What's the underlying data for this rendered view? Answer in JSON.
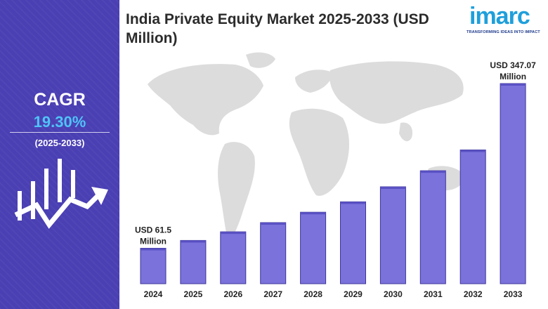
{
  "sidebar": {
    "cagr_label": "CAGR",
    "cagr_value": "19.30%",
    "period": "(2025-2033)",
    "icon": "growth-chart-icon"
  },
  "logo": {
    "text": "imarc",
    "tagline": "TRANSFORMING IDEAS INTO IMPACT"
  },
  "colors": {
    "sidebar_bg": "#4a3fb3",
    "cagr_value": "#4fc3f7",
    "bar_fill": "#7b72dc",
    "bar_edge": "#3e3599",
    "logo": "#1f9fdb",
    "map": "#dcdcdc"
  },
  "chart_data": {
    "type": "bar",
    "title": "India Private Equity Market 2025-2033 (USD Million)",
    "categories": [
      "2024",
      "2025",
      "2026",
      "2027",
      "2028",
      "2029",
      "2030",
      "2031",
      "2032",
      "2033"
    ],
    "values": [
      61.5,
      75,
      90,
      106,
      124,
      142,
      168,
      196,
      232,
      347.07
    ],
    "annotations": [
      {
        "index": 0,
        "text": "USD 61.5 Million",
        "lines": [
          "USD 61.5",
          "Million"
        ]
      },
      {
        "index": 9,
        "text": "USD 347.07 Million",
        "lines": [
          "USD 347.07",
          "Million"
        ]
      }
    ],
    "xlabel": "",
    "ylabel": "",
    "ylim": [
      0,
      347.07
    ],
    "grid": false,
    "legend": "none"
  }
}
